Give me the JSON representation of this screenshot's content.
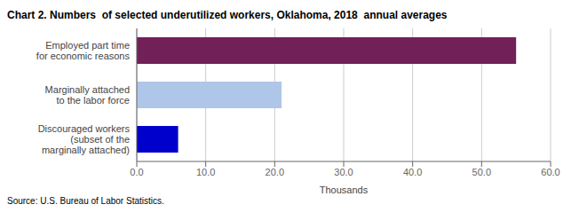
{
  "chart_data": {
    "type": "bar",
    "orientation": "horizontal",
    "title": "Chart 2. Numbers  of selected underutilized workers, Oklahoma, 2018  annual averages",
    "categories": [
      "Discouraged workers\n(subset of the\nmarginally attached)",
      "Marginally attached\nto the labor force",
      "Employed part time\nfor economic reasons"
    ],
    "values": [
      6.0,
      21.0,
      55.0
    ],
    "colors": [
      "#0000cc",
      "#aec6e8",
      "#722058"
    ],
    "xlabel": "Thousands",
    "xlim": [
      0,
      60
    ],
    "xticks": [
      {
        "value": 0,
        "label": "0.0"
      },
      {
        "value": 10,
        "label": "10.0"
      },
      {
        "value": 20,
        "label": "20.0"
      },
      {
        "value": 30,
        "label": "30.0"
      },
      {
        "value": 40,
        "label": "40.0"
      },
      {
        "value": 50,
        "label": "50.0"
      },
      {
        "value": 60,
        "label": "60.0"
      }
    ],
    "grid": true,
    "annotations": [
      "Source: U.S. Bureau of Labor Statistics."
    ]
  }
}
